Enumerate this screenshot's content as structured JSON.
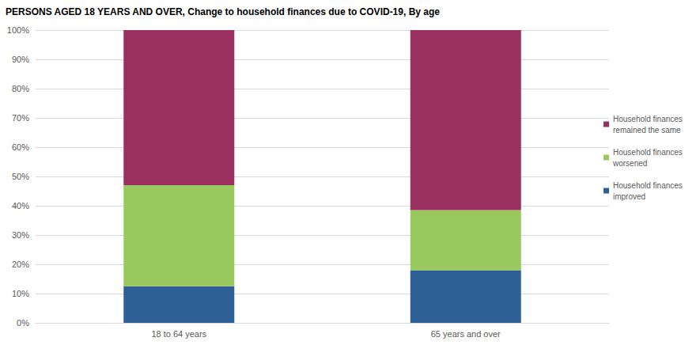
{
  "chart_data": {
    "type": "bar",
    "title": "PERSONS AGED 18 YEARS AND OVER, Change to household finances due to COVID-19, By age",
    "categories": [
      "18 to 64 years",
      "65 years and over"
    ],
    "series": [
      {
        "name": "Household finances improved",
        "color": "#2e6096",
        "values": [
          12.5,
          18
        ]
      },
      {
        "name": "Household finances worsened",
        "color": "#99c95e",
        "values": [
          34.5,
          20.5
        ]
      },
      {
        "name": "Household finances remained the same",
        "color": "#993060",
        "values": [
          53,
          61.5
        ]
      }
    ],
    "ylim": [
      0,
      100
    ],
    "yticks": [
      {
        "value": 0,
        "label": "0%"
      },
      {
        "value": 10,
        "label": "10%"
      },
      {
        "value": 20,
        "label": "20%"
      },
      {
        "value": 30,
        "label": "30%"
      },
      {
        "value": 40,
        "label": "40%"
      },
      {
        "value": 50,
        "label": "50%"
      },
      {
        "value": 60,
        "label": "60%"
      },
      {
        "value": 70,
        "label": "70%"
      },
      {
        "value": 80,
        "label": "80%"
      },
      {
        "value": 90,
        "label": "90%"
      },
      {
        "value": 100,
        "label": "100%"
      }
    ],
    "stacked": true,
    "grid": true,
    "legend": "right"
  }
}
